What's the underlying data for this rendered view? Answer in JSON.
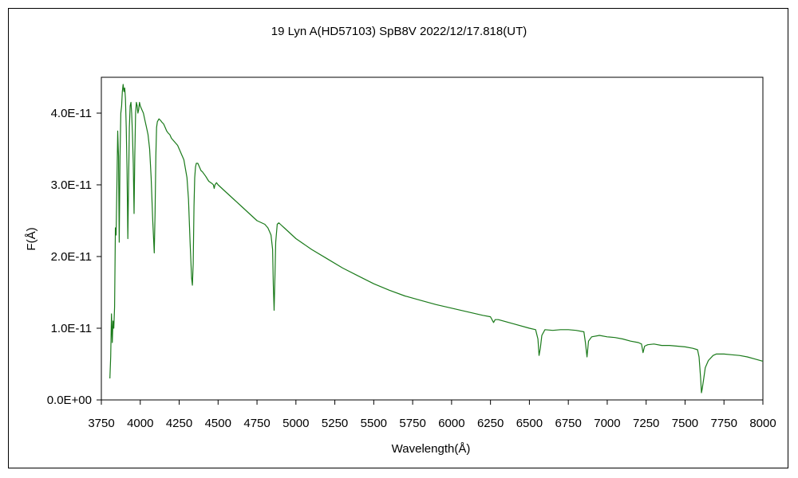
{
  "chart_data": {
    "type": "line",
    "title": "19 Lyn A(HD57103)   SpB8V   2022/12/17.818(UT)",
    "xlabel": "Wavelength(Å)",
    "ylabel": "F(Å)",
    "xlim": [
      3750,
      8000
    ],
    "ylim": [
      0,
      4.5e-11
    ],
    "x_ticks": [
      3750,
      4000,
      4250,
      4500,
      4750,
      5000,
      5250,
      5500,
      5750,
      6000,
      6250,
      6500,
      6750,
      7000,
      7250,
      7500,
      7750,
      8000
    ],
    "x_tick_labels": [
      "3750",
      "4000",
      "4250",
      "4500",
      "4750",
      "5000",
      "5250",
      "5500",
      "5750",
      "6000",
      "6250",
      "6500",
      "6750",
      "7000",
      "7250",
      "7500",
      "7750",
      "8000"
    ],
    "y_ticks": [
      0,
      1e-11,
      2e-11,
      3e-11,
      4e-11
    ],
    "y_tick_labels": [
      "0.0E+00",
      "1.0E-11",
      "2.0E-11",
      "3.0E-11",
      "4.0E-11"
    ],
    "grid": false,
    "line_color": "#1a7a1a",
    "series": [
      {
        "x": [
          3805,
          3810,
          3815,
          3820,
          3825,
          3830,
          3835,
          3840,
          3845,
          3850,
          3855,
          3860,
          3865,
          3870,
          3875,
          3880,
          3885,
          3890,
          3895,
          3900,
          3905,
          3910,
          3915,
          3920,
          3925,
          3930,
          3935,
          3940,
          3945,
          3950,
          3955,
          3960,
          3965,
          3970,
          3975,
          3980,
          3985,
          3990,
          3995,
          4000,
          4010,
          4020,
          4030,
          4040,
          4050,
          4060,
          4070,
          4080,
          4090,
          4095,
          4100,
          4105,
          4110,
          4115,
          4120,
          4130,
          4140,
          4150,
          4160,
          4170,
          4180,
          4190,
          4200,
          4220,
          4240,
          4260,
          4280,
          4300,
          4310,
          4320,
          4330,
          4335,
          4340,
          4345,
          4350,
          4355,
          4360,
          4370,
          4380,
          4390,
          4400,
          4420,
          4440,
          4460,
          4470,
          4475,
          4480,
          4490,
          4500,
          4550,
          4600,
          4650,
          4700,
          4750,
          4800,
          4820,
          4830,
          4840,
          4850,
          4855,
          4860,
          4865,
          4870,
          4880,
          4890,
          4900,
          4925,
          4950,
          5000,
          5100,
          5200,
          5300,
          5400,
          5500,
          5600,
          5700,
          5750,
          5800,
          5900,
          6000,
          6100,
          6200,
          6250,
          6270,
          6280,
          6300,
          6400,
          6500,
          6540,
          6555,
          6562,
          6570,
          6580,
          6600,
          6650,
          6700,
          6750,
          6800,
          6850,
          6860,
          6870,
          6880,
          6900,
          6950,
          7000,
          7050,
          7100,
          7150,
          7200,
          7220,
          7230,
          7240,
          7260,
          7300,
          7350,
          7400,
          7450,
          7500,
          7550,
          7580,
          7590,
          7600,
          7605,
          7610,
          7620,
          7630,
          7650,
          7680,
          7700,
          7750,
          7800,
          7850,
          7900,
          7950,
          8000
        ],
        "y": [
          3e-12,
          6e-12,
          1.2e-11,
          8e-12,
          1.1e-11,
          1e-11,
          1.3e-11,
          2.4e-11,
          2.3e-11,
          3e-11,
          3.75e-11,
          3.4e-11,
          2.2e-11,
          3.4e-11,
          4e-11,
          4.1e-11,
          4.3e-11,
          4.4e-11,
          4.3e-11,
          4.35e-11,
          4.2e-11,
          3.8e-11,
          3.2e-11,
          2.25e-11,
          3e-11,
          3.8e-11,
          4.1e-11,
          4.15e-11,
          4e-11,
          3.7e-11,
          3.3e-11,
          2.6e-11,
          3.4e-11,
          4e-11,
          4.15e-11,
          4.1e-11,
          4e-11,
          4.05e-11,
          4.15e-11,
          4.1e-11,
          4.05e-11,
          4e-11,
          3.9e-11,
          3.8e-11,
          3.7e-11,
          3.5e-11,
          3.1e-11,
          2.5e-11,
          2.05e-11,
          2.6e-11,
          3.4e-11,
          3.8e-11,
          3.88e-11,
          3.9e-11,
          3.92e-11,
          3.9e-11,
          3.87e-11,
          3.85e-11,
          3.8e-11,
          3.75e-11,
          3.72e-11,
          3.7e-11,
          3.65e-11,
          3.6e-11,
          3.55e-11,
          3.45e-11,
          3.35e-11,
          3.1e-11,
          2.8e-11,
          2.2e-11,
          1.7e-11,
          1.6e-11,
          1.9e-11,
          2.7e-11,
          3.1e-11,
          3.25e-11,
          3.3e-11,
          3.3e-11,
          3.25e-11,
          3.2e-11,
          3.18e-11,
          3.12e-11,
          3.05e-11,
          3.02e-11,
          3e-11,
          2.95e-11,
          3e-11,
          3.03e-11,
          3e-11,
          2.9e-11,
          2.8e-11,
          2.7e-11,
          2.6e-11,
          2.5e-11,
          2.45e-11,
          2.4e-11,
          2.35e-11,
          2.3e-11,
          2.1e-11,
          1.6e-11,
          1.25e-11,
          1.7e-11,
          2.2e-11,
          2.45e-11,
          2.47e-11,
          2.45e-11,
          2.4e-11,
          2.35e-11,
          2.25e-11,
          2.1e-11,
          1.97e-11,
          1.84e-11,
          1.73e-11,
          1.62e-11,
          1.53e-11,
          1.45e-11,
          1.42e-11,
          1.39e-11,
          1.33e-11,
          1.28e-11,
          1.23e-11,
          1.18e-11,
          1.16e-11,
          1.08e-11,
          1.12e-11,
          1.12e-11,
          1.06e-11,
          1e-11,
          9.8e-12,
          8.5e-12,
          6.2e-12,
          7.2e-12,
          9e-12,
          9.8e-12,
          9.7e-12,
          9.8e-12,
          9.8e-12,
          9.7e-12,
          9.5e-12,
          8e-12,
          6e-12,
          8.2e-12,
          8.8e-12,
          9e-12,
          8.8e-12,
          8.7e-12,
          8.5e-12,
          8.2e-12,
          8e-12,
          7.8e-12,
          6.6e-12,
          7.5e-12,
          7.7e-12,
          7.8e-12,
          7.6e-12,
          7.6e-12,
          7.5e-12,
          7.4e-12,
          7.2e-12,
          7e-12,
          6e-12,
          3e-12,
          1e-12,
          1.5e-12,
          3e-12,
          4.5e-12,
          5.5e-12,
          6.2e-12,
          6.4e-12,
          6.4e-12,
          6.3e-12,
          6.2e-12,
          6e-12,
          5.7e-12,
          5.4e-12
        ]
      }
    ]
  }
}
